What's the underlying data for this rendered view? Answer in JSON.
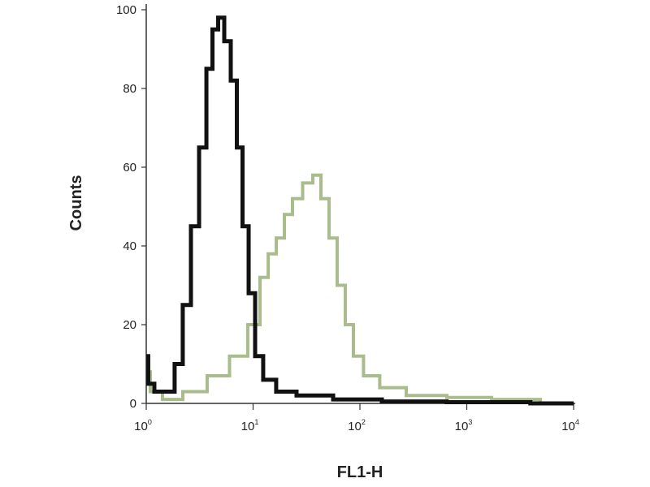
{
  "chart_data": {
    "type": "line",
    "title": "",
    "xlabel": "FL1-H",
    "ylabel": "Counts",
    "xscale": "log",
    "xlim": [
      1,
      10000
    ],
    "ylim": [
      0,
      100
    ],
    "xticks": [
      {
        "base": "10",
        "exp": "0"
      },
      {
        "base": "10",
        "exp": "1"
      },
      {
        "base": "10",
        "exp": "2"
      },
      {
        "base": "10",
        "exp": "3"
      },
      {
        "base": "10",
        "exp": "4"
      }
    ],
    "yticks": [
      "0",
      "20",
      "40",
      "60",
      "80",
      "100"
    ],
    "grid": false,
    "series": [
      {
        "color": "#111111",
        "x": [
          1.0,
          1.09,
          1.3,
          1.69,
          2.01,
          2.4,
          2.86,
          3.41,
          3.92,
          4.43,
          5.01,
          5.76,
          6.63,
          7.49,
          8.47,
          9.75,
          11.2,
          13.8,
          19.6,
          33.2,
          94.9,
          271,
          1550,
          10000
        ],
        "y": [
          12,
          5,
          3,
          3,
          10,
          25,
          45,
          65,
          85,
          95,
          98,
          92,
          82,
          65,
          45,
          28,
          12,
          6,
          3,
          2,
          1,
          0.5,
          0.3,
          0
        ]
      },
      {
        "color": "#a9bd8c",
        "x": [
          1.0,
          1.19,
          1.69,
          2.86,
          4.83,
          7.49,
          10.6,
          12.7,
          15.1,
          18.0,
          21.4,
          25.5,
          33.2,
          39.5,
          47.1,
          56.1,
          66.8,
          79.6,
          94.9,
          123,
          191,
          385,
          1101,
          2643,
          9000
        ],
        "y": [
          8,
          3,
          1,
          3,
          7,
          12,
          20,
          32,
          38,
          42,
          48,
          52,
          56,
          58,
          52,
          42,
          30,
          20,
          12,
          7,
          4,
          2,
          1.5,
          1,
          0
        ]
      }
    ]
  }
}
